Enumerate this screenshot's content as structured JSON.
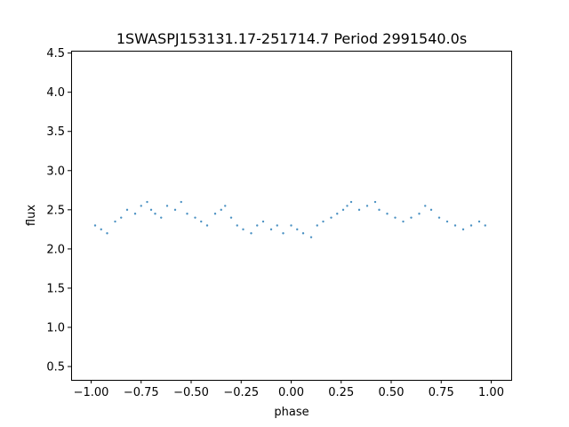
{
  "chart_data": {
    "type": "scatter",
    "title": "1SWASPJ153131.17-251714.7 Period 2991540.0s",
    "xlabel": "phase",
    "ylabel": "flux",
    "xlim": [
      -1.1,
      1.1
    ],
    "ylim": [
      0.33,
      4.53
    ],
    "x_ticks": [
      -1.0,
      -0.75,
      -0.5,
      -0.25,
      0.0,
      0.25,
      0.5,
      0.75,
      1.0
    ],
    "x_tick_labels": [
      "−1.00",
      "−0.75",
      "−0.50",
      "−0.25",
      "0.00",
      "0.25",
      "0.50",
      "0.75",
      "1.00"
    ],
    "y_ticks": [
      0.5,
      1.0,
      1.5,
      2.0,
      2.5,
      3.0,
      3.5,
      4.0,
      4.5
    ],
    "y_tick_labels": [
      "0.5",
      "1.0",
      "1.5",
      "2.0",
      "2.5",
      "3.0",
      "3.5",
      "4.0",
      "4.5"
    ],
    "grid": false,
    "marker_color": "#1f77b4",
    "series": [
      {
        "x": [
          -0.98,
          -0.95,
          -0.92,
          -0.88,
          -0.85,
          -0.82,
          -0.78,
          -0.75,
          -0.72,
          -0.7,
          -0.68,
          -0.65,
          -0.62,
          -0.58,
          -0.55,
          -0.52,
          -0.48,
          -0.45,
          -0.42,
          -0.38,
          -0.35,
          -0.33,
          -0.3,
          -0.27,
          -0.24,
          -0.2,
          -0.17,
          -0.14,
          -0.1,
          -0.07,
          -0.04,
          0.0,
          0.03,
          0.06,
          0.1,
          0.13,
          0.16,
          0.2,
          0.23,
          0.26,
          0.28,
          0.3,
          0.34,
          0.38,
          0.42,
          0.44,
          0.48,
          0.52,
          0.56,
          0.6,
          0.64,
          0.67,
          0.7,
          0.74,
          0.78,
          0.82,
          0.86,
          0.9,
          0.94,
          0.97
        ],
        "y": [
          2.3,
          2.25,
          2.2,
          2.35,
          2.4,
          2.5,
          2.45,
          2.55,
          2.6,
          2.5,
          2.45,
          2.4,
          2.55,
          2.5,
          2.6,
          2.45,
          2.4,
          2.35,
          2.3,
          2.45,
          2.5,
          2.55,
          2.4,
          2.3,
          2.25,
          2.2,
          2.3,
          2.35,
          2.25,
          2.3,
          2.2,
          2.3,
          2.25,
          2.2,
          2.15,
          2.3,
          2.35,
          2.4,
          2.45,
          2.5,
          2.55,
          2.6,
          2.5,
          2.55,
          2.6,
          2.5,
          2.45,
          2.4,
          2.35,
          2.4,
          2.45,
          2.55,
          2.5,
          2.4,
          2.35,
          2.3,
          2.25,
          2.3,
          2.35,
          2.3
        ]
      }
    ]
  }
}
